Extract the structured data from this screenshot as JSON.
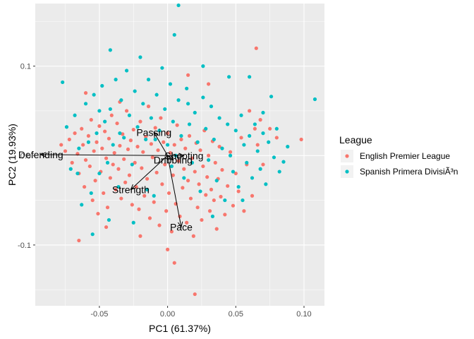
{
  "chart_data": {
    "type": "scatter",
    "xlabel": "PC1 (61.37%)",
    "ylabel": "PC2 (19.93%)",
    "xlim": [
      -0.097,
      0.115
    ],
    "ylim": [
      -0.168,
      0.17
    ],
    "x_ticks": [
      -0.05,
      0.0,
      0.05,
      0.1
    ],
    "x_tick_labels": [
      "-0.05",
      "0.00",
      "0.05",
      "0.10"
    ],
    "y_ticks": [
      -0.1,
      0.0,
      0.1
    ],
    "y_tick_labels": [
      "-0.1",
      "0.0",
      "0.1"
    ],
    "grid": true,
    "legend": {
      "title": "League",
      "placement": "right",
      "entries": [
        "English Premier League",
        "Spanish Primera DivisiÃ³n"
      ]
    },
    "colors": {
      "English Premier League": "#F8766D",
      "Spanish Primera DivisiÃ³n": "#00BFC4",
      "panel": "#EBEBEB",
      "grid_major": "#FFFFFF",
      "vector": "#000000"
    },
    "vectors": [
      {
        "label": "Defending",
        "x": -0.093,
        "y": 0.001
      },
      {
        "label": "Passing",
        "x": -0.01,
        "y": 0.026
      },
      {
        "label": "Shooting",
        "x": 0.012,
        "y": 0.0
      },
      {
        "label": "Dribbling",
        "x": 0.004,
        "y": -0.005
      },
      {
        "label": "Strength",
        "x": -0.027,
        "y": -0.038
      },
      {
        "label": "Pace",
        "x": 0.01,
        "y": -0.08
      }
    ],
    "series": [
      {
        "name": "English Premier League",
        "points": [
          [
            -0.078,
            0.012
          ],
          [
            -0.075,
            0.005
          ],
          [
            -0.072,
            0.018
          ],
          [
            -0.07,
            -0.008
          ],
          [
            -0.068,
            0.025
          ],
          [
            -0.066,
            0.002
          ],
          [
            -0.065,
            -0.02
          ],
          [
            -0.063,
            0.03
          ],
          [
            -0.062,
            0.012
          ],
          [
            -0.061,
            -0.035
          ],
          [
            -0.06,
            -0.005
          ],
          [
            -0.058,
            0.022
          ],
          [
            -0.057,
            -0.012
          ],
          [
            -0.056,
            0.04
          ],
          [
            -0.055,
            -0.05
          ],
          [
            -0.054,
            0.005
          ],
          [
            -0.053,
            -0.028
          ],
          [
            -0.052,
            0.015
          ],
          [
            -0.051,
            -0.065
          ],
          [
            -0.05,
            0.033
          ],
          [
            -0.049,
            -0.018
          ],
          [
            -0.048,
            0.008
          ],
          [
            -0.047,
            -0.042
          ],
          [
            -0.046,
            0.027
          ],
          [
            -0.045,
            -0.003
          ],
          [
            -0.044,
            -0.058
          ],
          [
            -0.043,
            0.019
          ],
          [
            -0.042,
            -0.025
          ],
          [
            -0.041,
            0.045
          ],
          [
            -0.04,
            -0.01
          ],
          [
            -0.039,
            0.003
          ],
          [
            -0.038,
            -0.038
          ],
          [
            -0.037,
            0.036
          ],
          [
            -0.036,
            -0.015
          ],
          [
            -0.035,
            0.011
          ],
          [
            -0.034,
            -0.048
          ],
          [
            -0.033,
            0.024
          ],
          [
            -0.032,
            -0.004
          ],
          [
            -0.031,
            -0.03
          ],
          [
            -0.03,
            0.05
          ],
          [
            -0.029,
            0.007
          ],
          [
            -0.028,
            -0.022
          ],
          [
            -0.027,
            0.017
          ],
          [
            -0.026,
            -0.055
          ],
          [
            -0.025,
            0.029
          ],
          [
            -0.024,
            -0.008
          ],
          [
            -0.023,
            -0.035
          ],
          [
            -0.022,
            0.01
          ],
          [
            -0.021,
            -0.06
          ],
          [
            -0.02,
            0.038
          ],
          [
            -0.019,
            -0.014
          ],
          [
            -0.018,
            0.004
          ],
          [
            -0.017,
            -0.045
          ],
          [
            -0.016,
            0.021
          ],
          [
            -0.015,
            -0.026
          ],
          [
            -0.014,
            0.055
          ],
          [
            -0.013,
            -0.07
          ],
          [
            -0.012,
            0.013
          ],
          [
            -0.011,
            -0.002
          ],
          [
            -0.01,
            -0.052
          ],
          [
            -0.009,
            0.031
          ],
          [
            -0.008,
            -0.019
          ],
          [
            -0.007,
            0.006
          ],
          [
            -0.006,
            -0.078
          ],
          [
            -0.005,
            0.042
          ],
          [
            -0.004,
            -0.032
          ],
          [
            -0.003,
            0.015
          ],
          [
            -0.002,
            -0.01
          ],
          [
            -0.001,
            -0.062
          ],
          [
            0.0,
            0.025
          ],
          [
            0.001,
            -0.042
          ],
          [
            0.002,
            0.003
          ],
          [
            0.003,
            -0.085
          ],
          [
            0.004,
            -0.022
          ],
          [
            0.005,
            0.012
          ],
          [
            0.006,
            -0.054
          ],
          [
            0.007,
            0.034
          ],
          [
            0.008,
            -0.006
          ],
          [
            0.009,
            -0.068
          ],
          [
            0.01,
            0.018
          ],
          [
            0.011,
            -0.036
          ],
          [
            0.012,
            -0.015
          ],
          [
            0.013,
            0.008
          ],
          [
            0.014,
            -0.075
          ],
          [
            0.015,
            -0.028
          ],
          [
            0.016,
            0.022
          ],
          [
            0.017,
            -0.048
          ],
          [
            0.018,
            -0.003
          ],
          [
            0.019,
            -0.09
          ],
          [
            0.02,
            -0.018
          ],
          [
            0.021,
            0.014
          ],
          [
            0.022,
            -0.058
          ],
          [
            0.023,
            -0.032
          ],
          [
            0.024,
            0.006
          ],
          [
            0.025,
            -0.072
          ],
          [
            0.026,
            -0.012
          ],
          [
            0.027,
            0.028
          ],
          [
            0.028,
            -0.044
          ],
          [
            0.029,
            -0.024
          ],
          [
            0.03,
            0.0
          ],
          [
            0.031,
            -0.062
          ],
          [
            0.032,
            -0.038
          ],
          [
            0.033,
            0.016
          ],
          [
            0.034,
            -0.05
          ],
          [
            0.035,
            -0.008
          ],
          [
            0.036,
            -0.082
          ],
          [
            0.037,
            -0.026
          ],
          [
            0.038,
            0.01
          ],
          [
            0.039,
            -0.046
          ],
          [
            0.04,
            -0.016
          ],
          [
            0.042,
            -0.066
          ],
          [
            0.044,
            -0.034
          ],
          [
            0.046,
            0.004
          ],
          [
            0.048,
            -0.056
          ],
          [
            0.05,
            -0.02
          ],
          [
            0.052,
            -0.04
          ],
          [
            0.054,
            0.02
          ],
          [
            0.056,
            -0.062
          ],
          [
            0.058,
            -0.01
          ],
          [
            0.06,
            0.05
          ],
          [
            0.062,
            -0.045
          ],
          [
            0.064,
            0.03
          ],
          [
            0.066,
            0.012
          ],
          [
            0.068,
            0.04
          ],
          [
            0.07,
            -0.01
          ],
          [
            0.075,
            0.03
          ],
          [
            0.08,
            0.02
          ],
          [
            0.098,
            0.018
          ],
          [
            0.065,
            0.12
          ],
          [
            -0.035,
            0.06
          ],
          [
            0.02,
            -0.155
          ],
          [
            0.0,
            -0.105
          ],
          [
            -0.065,
            -0.095
          ],
          [
            -0.06,
            0.07
          ],
          [
            0.005,
            -0.12
          ],
          [
            -0.045,
            -0.08
          ],
          [
            0.03,
            0.08
          ],
          [
            -0.02,
            -0.09
          ],
          [
            0.015,
            0.09
          ]
        ]
      },
      {
        "name": "Spanish Primera DivisiÃ³n",
        "points": [
          [
            -0.077,
            0.082
          ],
          [
            -0.074,
            0.032
          ],
          [
            -0.071,
            -0.015
          ],
          [
            -0.068,
            0.045
          ],
          [
            -0.065,
            0.008
          ],
          [
            -0.063,
            -0.055
          ],
          [
            -0.06,
            0.058
          ],
          [
            -0.058,
            0.015
          ],
          [
            -0.056,
            -0.042
          ],
          [
            -0.054,
            0.068
          ],
          [
            -0.052,
            0.025
          ],
          [
            -0.05,
            -0.02
          ],
          [
            -0.048,
            0.078
          ],
          [
            -0.046,
            0.038
          ],
          [
            -0.044,
            -0.008
          ],
          [
            -0.043,
            -0.072
          ],
          [
            -0.042,
            0.052
          ],
          [
            -0.04,
            0.012
          ],
          [
            -0.038,
            0.085
          ],
          [
            -0.036,
            -0.035
          ],
          [
            -0.034,
            0.062
          ],
          [
            -0.032,
            0.02
          ],
          [
            -0.03,
            0.095
          ],
          [
            -0.028,
            0.045
          ],
          [
            -0.026,
            -0.01
          ],
          [
            -0.024,
            0.072
          ],
          [
            -0.022,
            0.032
          ],
          [
            -0.02,
            0.11
          ],
          [
            -0.018,
            0.058
          ],
          [
            -0.016,
            0.018
          ],
          [
            -0.014,
            0.085
          ],
          [
            -0.012,
            0.042
          ],
          [
            -0.01,
            -0.045
          ],
          [
            -0.008,
            0.068
          ],
          [
            -0.006,
            0.028
          ],
          [
            -0.004,
            0.098
          ],
          [
            -0.002,
            0.052
          ],
          [
            0.0,
            0.012
          ],
          [
            0.002,
            0.08
          ],
          [
            0.004,
            0.038
          ],
          [
            0.006,
            0.0
          ],
          [
            0.008,
            0.062
          ],
          [
            0.01,
            0.022
          ],
          [
            0.012,
            -0.025
          ],
          [
            0.014,
            0.075
          ],
          [
            0.016,
            0.035
          ],
          [
            0.018,
            -0.008
          ],
          [
            0.02,
            0.048
          ],
          [
            0.022,
            0.015
          ],
          [
            0.024,
            -0.04
          ],
          [
            0.026,
            0.065
          ],
          [
            0.028,
            0.03
          ],
          [
            0.03,
            -0.005
          ],
          [
            0.032,
            0.055
          ],
          [
            0.034,
            0.018
          ],
          [
            0.036,
            -0.028
          ],
          [
            0.038,
            0.042
          ],
          [
            0.04,
            0.008
          ],
          [
            0.042,
            -0.05
          ],
          [
            0.044,
            0.035
          ],
          [
            0.046,
            0.0
          ],
          [
            0.048,
            -0.018
          ],
          [
            0.05,
            0.028
          ],
          [
            0.052,
            -0.035
          ],
          [
            0.054,
            0.045
          ],
          [
            0.056,
            0.012
          ],
          [
            0.058,
            -0.008
          ],
          [
            0.06,
            0.022
          ],
          [
            0.062,
            -0.025
          ],
          [
            0.064,
            0.035
          ],
          [
            0.066,
            0.005
          ],
          [
            0.068,
            -0.015
          ],
          [
            0.07,
            0.025
          ],
          [
            0.072,
            -0.032
          ],
          [
            0.074,
            0.015
          ],
          [
            0.076,
            0.066
          ],
          [
            0.078,
            -0.002
          ],
          [
            0.08,
            0.03
          ],
          [
            0.082,
            -0.018
          ],
          [
            0.085,
            -0.007
          ],
          [
            0.088,
            0.01
          ],
          [
            0.108,
            0.063
          ],
          [
            0.008,
            0.168
          ],
          [
            -0.042,
            0.118
          ],
          [
            0.005,
            0.135
          ],
          [
            -0.025,
            -0.075
          ],
          [
            -0.055,
            -0.088
          ],
          [
            0.033,
            -0.068
          ],
          [
            0.055,
            -0.05
          ],
          [
            0.015,
            0.058
          ],
          [
            -0.009,
            0.018
          ],
          [
            -0.066,
            -0.02
          ],
          [
            0.045,
            0.088
          ],
          [
            0.07,
            0.048
          ],
          [
            -0.015,
            -0.038
          ],
          [
            0.026,
            0.1
          ],
          [
            -0.035,
            0.025
          ],
          [
            0.06,
            0.088
          ],
          [
            0.003,
            -0.012
          ],
          [
            -0.05,
            0.05
          ]
        ]
      }
    ]
  }
}
